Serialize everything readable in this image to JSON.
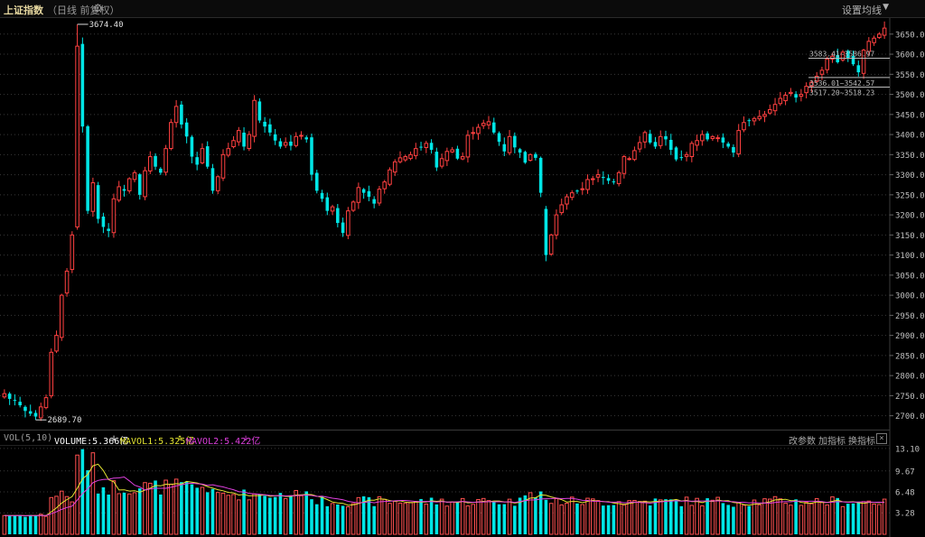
{
  "header": {
    "title": "上证指数",
    "subtitle": "（日线 前复权）",
    "ma_setting_label": "设置均线"
  },
  "volume_panel": {
    "indicator": "VOL(5,10)",
    "volume_label": "VOLUME:5.366亿",
    "mavol1_label": "MAVOL1:5.325亿",
    "mavol2_label": "MAVOL2:5.422亿",
    "btn_params": "改参数",
    "btn_add": "加指标",
    "btn_switch": "换指标",
    "close": "×"
  },
  "colors": {
    "up": "#ff4040",
    "down": "#00e5e5",
    "volume_up": "#ff5050",
    "volume_down": "#00e5e5",
    "mavol1": "#e6e633",
    "mavol2": "#e040e0",
    "grid": "#3a3a3a",
    "axis_text": "#c0c0c0"
  },
  "chart_data": [
    {
      "type": "candlestick",
      "ylim": [
        2670,
        3690
      ],
      "y_ticks": [
        "3650.00",
        "3600.00",
        "3550.00",
        "3500.00",
        "3450.00",
        "3400.00",
        "3350.00",
        "3300.00",
        "3250.00",
        "3200.00",
        "3150.00",
        "3100.00",
        "3050.00",
        "3000.00",
        "2950.00",
        "2900.00",
        "2850.00",
        "2800.00",
        "2750.00",
        "2700.00"
      ],
      "annotations": [
        "3674.40",
        "2689.70",
        "3583.41~3586.97",
        "3536.01~3542.57",
        "3517.20~3518.23"
      ],
      "close_series": [
        2755,
        2742,
        2738,
        2726,
        2712,
        2705,
        2698,
        2722,
        2745,
        2858,
        2900,
        3000,
        3060,
        3150,
        3620,
        3420,
        3210,
        3280,
        3190,
        3170,
        3160,
        3240,
        3270,
        3260,
        3290,
        3305,
        3250,
        3310,
        3345,
        3320,
        3305,
        3365,
        3430,
        3470,
        3425,
        3395,
        3345,
        3325,
        3365,
        3320,
        3260,
        3295,
        3350,
        3365,
        3385,
        3410,
        3370,
        3400,
        3485,
        3435,
        3420,
        3405,
        3385,
        3370,
        3380,
        3372,
        3395,
        3398,
        3388,
        3300,
        3260,
        3240,
        3210,
        3220,
        3180,
        3155,
        3210,
        3232,
        3268,
        3255,
        3245,
        3228,
        3264,
        3282,
        3312,
        3332,
        3342,
        3345,
        3350,
        3365,
        3368,
        3378,
        3362,
        3318,
        3340,
        3358,
        3362,
        3340,
        3345,
        3398,
        3405,
        3418,
        3428,
        3432,
        3405,
        3382,
        3358,
        3395,
        3368,
        3355,
        3330,
        3350,
        3342,
        3255,
        3100,
        3150,
        3200,
        3225,
        3245,
        3255,
        3260,
        3265,
        3288,
        3290,
        3300,
        3292,
        3285,
        3282,
        3305,
        3345,
        3340,
        3360,
        3380,
        3405,
        3380,
        3370,
        3395,
        3388,
        3362,
        3338,
        3342,
        3350,
        3378,
        3385,
        3400,
        3388,
        3395,
        3392,
        3380,
        3370,
        3355,
        3410,
        3430,
        3435,
        3440,
        3445,
        3450,
        3462,
        3475,
        3490,
        3498,
        3505,
        3492,
        3500,
        3520,
        3530,
        3545,
        3560,
        3588,
        3595,
        3580,
        3605,
        3590,
        3575,
        3555,
        3610,
        3632,
        3640,
        3650,
        3665
      ],
      "high_points": [
        {
          "x_index": 14,
          "value": 3674.4
        }
      ],
      "low_points": [
        {
          "x_index": 6,
          "value": 2689.7
        }
      ],
      "ref_lines": [
        3590,
        3542,
        3518
      ]
    },
    {
      "type": "bar",
      "title": "VOL(5,10)",
      "series": [
        {
          "name": "VOLUME",
          "last": 5.366
        },
        {
          "name": "MAVOL1",
          "last": 5.325
        },
        {
          "name": "MAVOL2",
          "last": 5.422
        }
      ],
      "ylim": [
        0,
        13.5
      ],
      "y_ticks": [
        "13.10",
        "9.67",
        "6.48",
        "3.28"
      ]
    }
  ]
}
